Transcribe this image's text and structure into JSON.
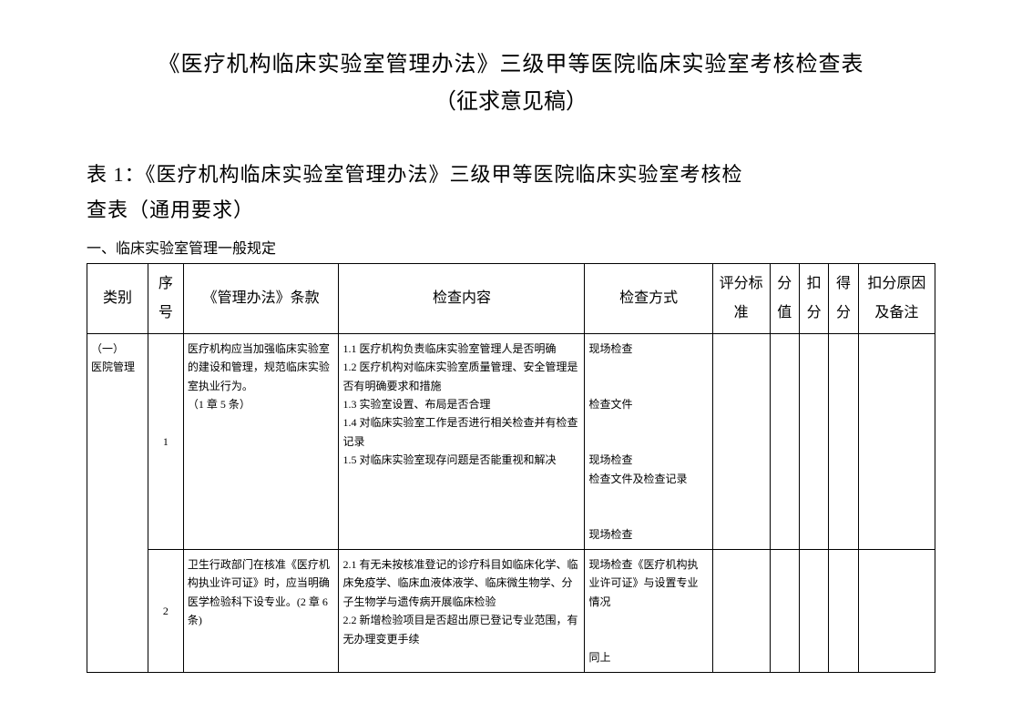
{
  "doc": {
    "title_line1": "《医疗机构临床实验室管理办法》三级甲等医院临床实验室考核检查表",
    "title_line2": "（征求意见稿）",
    "table_heading_l1": "表 1：《医疗机构临床实验室管理办法》三级甲等医院临床实验室考核检",
    "table_heading_l2": "查表（通用要求）",
    "section_heading": "一、临床实验室管理一般规定"
  },
  "columns": {
    "category": "类别",
    "seq": "序号",
    "clause": "《管理办法》条款",
    "content": "检查内容",
    "method": "检查方式",
    "standard": "评分标准",
    "score": "分值",
    "deduct": "扣分",
    "obtained": "得分",
    "note": "扣分原因及备注"
  },
  "category": {
    "label_l1": "（一）",
    "label_l2": "医院管理"
  },
  "rows": [
    {
      "seq": "1",
      "clause": "医疗机构应当加强临床实验室的建设和管理，规范临床实验室执业行为。\n （1 章 5 条）",
      "content": "1.1 医疗机构负责临床实验室管理人是否明确\n1.2 医疗机构对临床实验室质量管理、安全管理是否有明确要求和措施\n1.3 实验室设置、布局是否合理\n1.4 对临床实验室工作是否进行相关检查并有检查记录\n1.5 对临床实验室现存问题是否能重视和解决",
      "method": "现场检查\n\n检查文件\n\n现场检查\n检查文件及检查记录\n\n现场检查"
    },
    {
      "seq": "2",
      "clause": "卫生行政部门在核准《医疗机构执业许可证》时，应当明确医学检验科下设专业。(2 章 6 条)",
      "content": "2.1 有无未按核准登记的诊疗科目如临床化学、临床免疫学、临床血液体液学、临床微生物学、分子生物学与遗传病开展临床检验\n2.2 新增检验项目是否超出原已登记专业范围，有无办理变更手续",
      "method": "现场检查《医疗机构执业许可证》与设置专业情况\n\n同上"
    }
  ]
}
